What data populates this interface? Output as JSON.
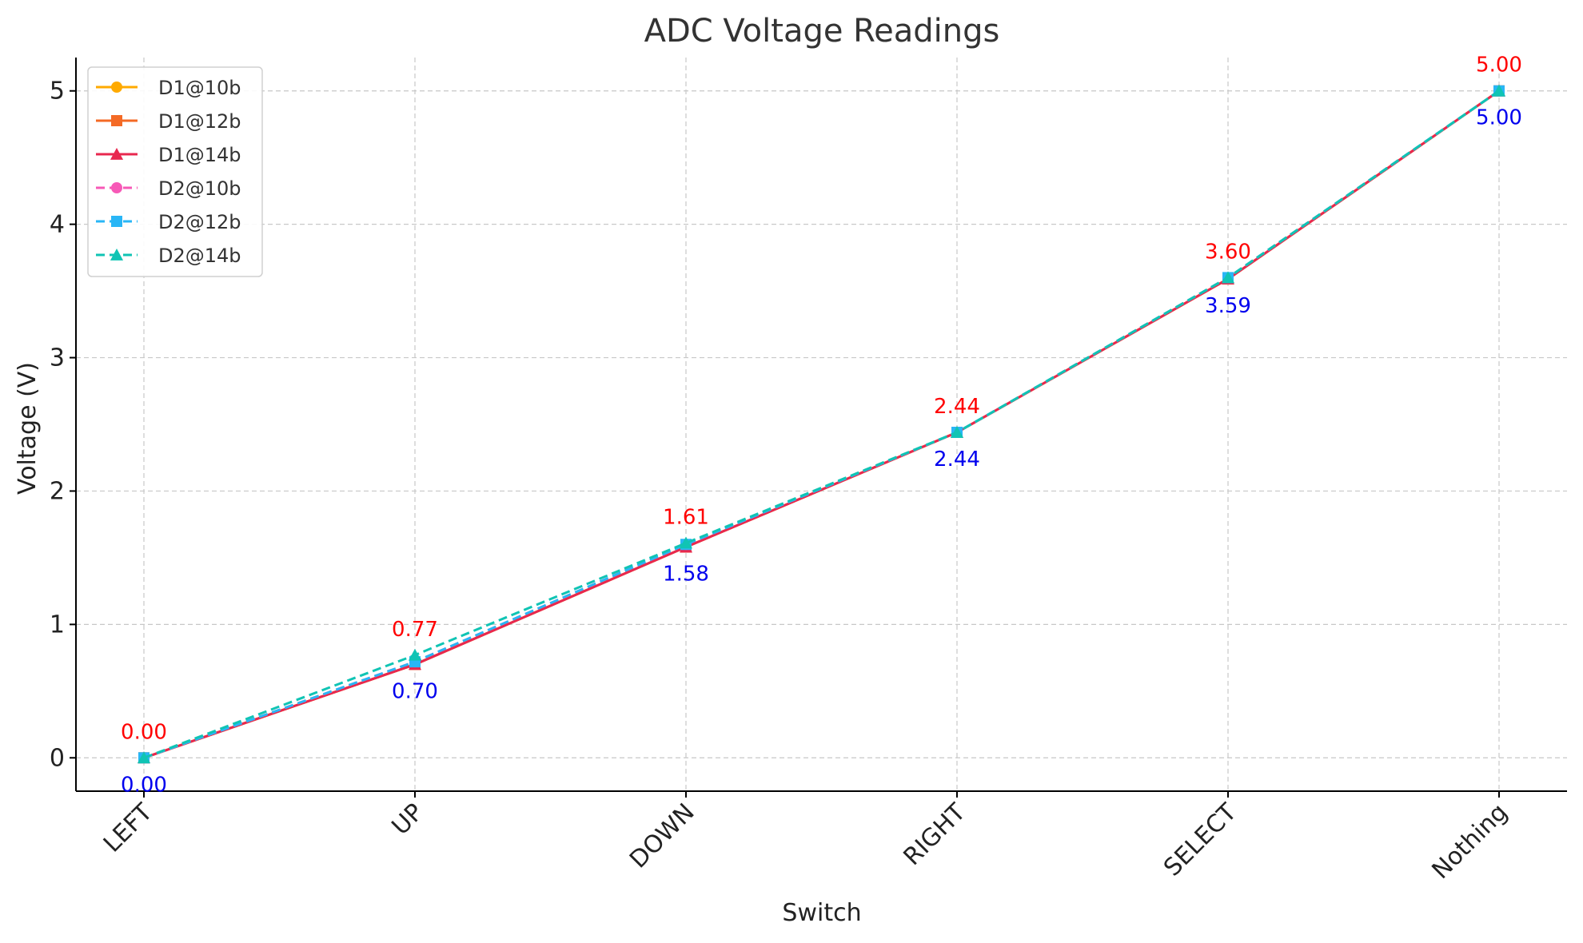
{
  "chart_data": {
    "type": "line",
    "title": "ADC Voltage Readings",
    "xlabel": "Switch",
    "ylabel": "Voltage (V)",
    "categories": [
      "LEFT",
      "UP",
      "DOWN",
      "RIGHT",
      "SELECT",
      "Nothing"
    ],
    "ylim": [
      -0.25,
      5.25
    ],
    "yticks": [
      0,
      1,
      2,
      3,
      4,
      5
    ],
    "grid": true,
    "legend_position": "top-left",
    "series": [
      {
        "name": "D1@10b",
        "color": "#ffaa00",
        "dash": "solid",
        "marker": "circle",
        "values": [
          0.0,
          0.7,
          1.58,
          2.44,
          3.59,
          5.0
        ]
      },
      {
        "name": "D1@12b",
        "color": "#f46a25",
        "dash": "solid",
        "marker": "square",
        "values": [
          0.0,
          0.7,
          1.58,
          2.44,
          3.59,
          5.0
        ]
      },
      {
        "name": "D1@14b",
        "color": "#e8284f",
        "dash": "solid",
        "marker": "triangle",
        "values": [
          0.0,
          0.7,
          1.58,
          2.44,
          3.59,
          5.0
        ]
      },
      {
        "name": "D2@10b",
        "color": "#f759b7",
        "dash": "dashed",
        "marker": "circle",
        "values": [
          0.0,
          0.72,
          1.6,
          2.44,
          3.6,
          5.0
        ]
      },
      {
        "name": "D2@12b",
        "color": "#29b6f6",
        "dash": "dashed",
        "marker": "square",
        "values": [
          0.0,
          0.72,
          1.6,
          2.44,
          3.6,
          5.0
        ]
      },
      {
        "name": "D2@14b",
        "color": "#10c4b4",
        "dash": "dashed",
        "marker": "triangle",
        "values": [
          0.0,
          0.77,
          1.61,
          2.44,
          3.6,
          5.0
        ]
      }
    ],
    "annotations": {
      "upper": {
        "color": "#ff0000",
        "labels": [
          "0.00",
          "0.77",
          "1.61",
          "2.44",
          "3.60",
          "5.00"
        ],
        "values": [
          0.0,
          0.77,
          1.61,
          2.44,
          3.6,
          5.0
        ]
      },
      "lower": {
        "color": "#0000ee",
        "labels": [
          "0.00",
          "0.70",
          "1.58",
          "2.44",
          "3.59",
          "5.00"
        ],
        "values": [
          0.0,
          0.7,
          1.58,
          2.44,
          3.59,
          5.0
        ]
      }
    }
  }
}
